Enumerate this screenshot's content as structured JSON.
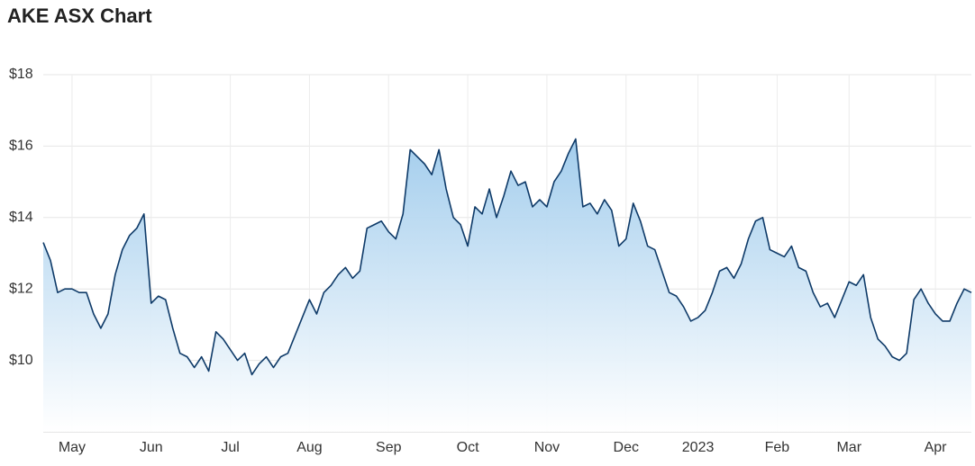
{
  "chart_data": {
    "type": "area",
    "title": "AKE ASX Chart",
    "categories": [
      null,
      null,
      null,
      null,
      "May",
      null,
      null,
      null,
      null,
      null,
      null,
      null,
      null,
      null,
      null,
      "Jun",
      null,
      null,
      null,
      null,
      null,
      null,
      null,
      null,
      null,
      null,
      "Jul",
      null,
      null,
      null,
      null,
      null,
      null,
      null,
      null,
      null,
      null,
      "Aug",
      null,
      null,
      null,
      null,
      null,
      null,
      null,
      null,
      null,
      null,
      "Sep",
      null,
      null,
      null,
      null,
      null,
      null,
      null,
      null,
      null,
      null,
      "Oct",
      null,
      null,
      null,
      null,
      null,
      null,
      null,
      null,
      null,
      null,
      "Nov",
      null,
      null,
      null,
      null,
      null,
      null,
      null,
      null,
      null,
      null,
      "Dec",
      null,
      null,
      null,
      null,
      null,
      null,
      null,
      null,
      null,
      "2023",
      null,
      null,
      null,
      null,
      null,
      null,
      null,
      null,
      null,
      null,
      "Feb",
      null,
      null,
      null,
      null,
      null,
      null,
      null,
      null,
      null,
      "Mar",
      null,
      null,
      null,
      null,
      null,
      null,
      null,
      null,
      null,
      null,
      null,
      "Apr",
      null,
      null,
      null,
      null,
      null
    ],
    "series": [
      {
        "color": "#0e3a68",
        "values": [
          13.3,
          12.8,
          11.9,
          12.0,
          12.0,
          11.9,
          11.9,
          11.3,
          10.9,
          11.3,
          12.4,
          13.1,
          13.5,
          13.7,
          14.1,
          11.6,
          11.8,
          11.7,
          10.9,
          10.2,
          10.1,
          9.8,
          10.1,
          9.7,
          10.8,
          10.6,
          10.3,
          10.0,
          10.2,
          9.6,
          9.9,
          10.1,
          9.8,
          10.1,
          10.2,
          10.7,
          11.2,
          11.7,
          11.3,
          11.9,
          12.1,
          12.4,
          12.6,
          12.3,
          12.5,
          13.7,
          13.8,
          13.9,
          13.6,
          13.4,
          14.1,
          15.9,
          15.7,
          15.5,
          15.2,
          15.9,
          14.8,
          14.0,
          13.8,
          13.2,
          14.3,
          14.1,
          14.8,
          14.0,
          14.6,
          15.3,
          14.9,
          15.0,
          14.3,
          14.5,
          14.3,
          15.0,
          15.3,
          15.8,
          16.2,
          14.3,
          14.4,
          14.1,
          14.5,
          14.2,
          13.2,
          13.4,
          14.4,
          13.9,
          13.2,
          13.1,
          12.5,
          11.9,
          11.8,
          11.5,
          11.1,
          11.2,
          11.4,
          11.9,
          12.5,
          12.6,
          12.3,
          12.7,
          13.4,
          13.9,
          14.0,
          13.1,
          13.0,
          12.9,
          13.2,
          12.6,
          12.5,
          11.9,
          11.5,
          11.6,
          11.2,
          11.7,
          12.2,
          12.1,
          12.4,
          11.2,
          10.6,
          10.4,
          10.1,
          10.0,
          10.2,
          11.7,
          12.0,
          11.6,
          11.3,
          11.1,
          11.1,
          11.6,
          12.0,
          11.9
        ]
      }
    ],
    "ylim": [
      8,
      18
    ],
    "yticks": [
      {
        "value": 10,
        "label": "$10"
      },
      {
        "value": 12,
        "label": "$12"
      },
      {
        "value": 14,
        "label": "$14"
      },
      {
        "value": 16,
        "label": "$16"
      },
      {
        "value": 18,
        "label": "$18"
      }
    ],
    "grid": true
  }
}
